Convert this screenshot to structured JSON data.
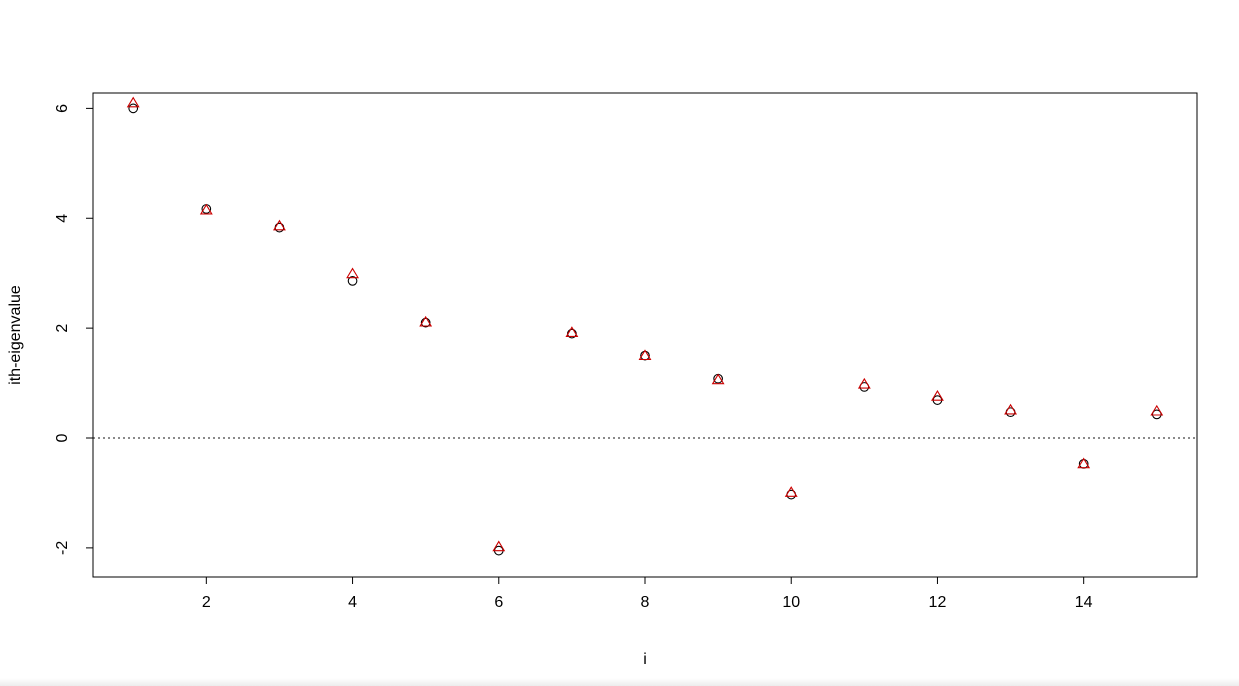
{
  "chart_data": {
    "type": "scatter",
    "title": "",
    "xlabel": "i",
    "ylabel": "ith-eigenvalue",
    "xlim": [
      0.45,
      15.55
    ],
    "ylim": [
      -2.53,
      6.28
    ],
    "x_ticks": [
      2,
      4,
      6,
      8,
      10,
      12,
      14
    ],
    "y_ticks": [
      -2,
      0,
      2,
      4,
      6
    ],
    "x_tick_labels": [
      "2",
      "4",
      "6",
      "8",
      "10",
      "12",
      "14"
    ],
    "y_tick_labels": [
      "-2",
      "0",
      "2",
      "4",
      "6"
    ],
    "grid": false,
    "legend": "none",
    "reference_line": {
      "y": 0,
      "style": "dotted",
      "color": "#444444"
    },
    "x": [
      1,
      2,
      3,
      4,
      5,
      6,
      7,
      8,
      9,
      10,
      11,
      12,
      13,
      14,
      15
    ],
    "series": [
      {
        "marker": "circle",
        "color": "#000000",
        "values": [
          6.0,
          4.17,
          3.83,
          2.86,
          2.1,
          -2.05,
          1.9,
          1.5,
          1.08,
          -1.03,
          0.93,
          0.69,
          0.47,
          -0.47,
          0.43
        ]
      },
      {
        "marker": "triangle",
        "color": "#cc0000",
        "values": [
          6.1,
          4.15,
          3.86,
          2.99,
          2.11,
          -1.98,
          1.92,
          1.5,
          1.06,
          -0.99,
          0.98,
          0.76,
          0.51,
          -0.47,
          0.49
        ]
      }
    ]
  }
}
